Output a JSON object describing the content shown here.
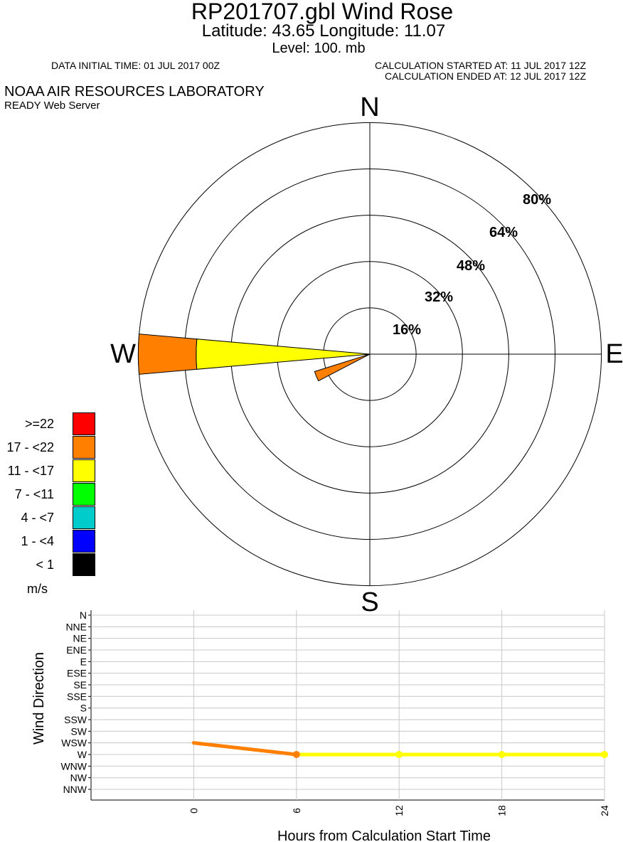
{
  "header": {
    "title": "RP201707.gbl Wind Rose",
    "subtitle": "Latitude: 43.65 Longitude:  11.07",
    "level": "Level:  100. mb",
    "initial_time": "DATA INITIAL TIME: 01 JUL 2017 00Z",
    "calc_started": "CALCULATION STARTED AT: 11 JUL 2017 12Z",
    "calc_ended": "CALCULATION ENDED AT: 12 JUL 2017 12Z",
    "org": "NOAA AIR RESOURCES LABORATORY",
    "server": "READY Web Server"
  },
  "chart_data": [
    {
      "type": "windrose",
      "compass": {
        "n": "N",
        "e": "E",
        "s": "S",
        "w": "W"
      },
      "ring_labels": [
        "16%",
        "32%",
        "48%",
        "64%",
        "80%"
      ],
      "ring_values": [
        16,
        32,
        48,
        64,
        80
      ],
      "petals": [
        {
          "direction": "W",
          "angle_deg": 270,
          "segments": [
            {
              "class": "11 - <17",
              "percent": 60
            },
            {
              "class": "17 - <22",
              "percent": 20
            }
          ]
        },
        {
          "direction": "WSW",
          "angle_deg": 247.5,
          "segments": [
            {
              "class": "17 - <22",
              "percent": 20
            }
          ]
        }
      ],
      "legend": {
        "unit": "m/s",
        "classes": [
          {
            "label": ">=22",
            "color": "#ff0000"
          },
          {
            "label": "17 - <22",
            "color": "#ff7f00"
          },
          {
            "label": "11 - <17",
            "color": "#ffff00"
          },
          {
            "label": "7 - <11",
            "color": "#00ff00"
          },
          {
            "label": "4 - <7",
            "color": "#00cccc"
          },
          {
            "label": "1 - <4",
            "color": "#0000ff"
          },
          {
            "label": "< 1",
            "color": "#000000"
          }
        ]
      }
    },
    {
      "type": "line",
      "ylabel": "Wind Direction",
      "xlabel": "Hours from Calculation Start Time",
      "y_categories": [
        "N",
        "NNE",
        "NE",
        "ENE",
        "E",
        "ESE",
        "SE",
        "SSE",
        "S",
        "SSW",
        "SW",
        "WSW",
        "W",
        "WNW",
        "NW",
        "NNW"
      ],
      "x_ticks": [
        0,
        6,
        12,
        18,
        24
      ],
      "x_tick_labels": [
        "0",
        "6",
        "12",
        "18",
        "24"
      ],
      "xlim": [
        -6,
        24
      ],
      "points": [
        {
          "hour": 0,
          "direction": "WSW",
          "color": "#ff7f00"
        },
        {
          "hour": 6,
          "direction": "W",
          "color": "#ff7f00"
        },
        {
          "hour": 12,
          "direction": "W",
          "color": "#ffff00"
        },
        {
          "hour": 18,
          "direction": "W",
          "color": "#ffff00"
        },
        {
          "hour": 24,
          "direction": "W",
          "color": "#ffff00"
        }
      ]
    }
  ]
}
